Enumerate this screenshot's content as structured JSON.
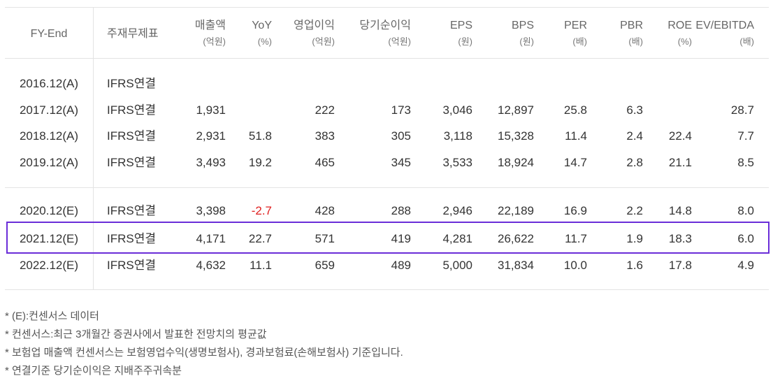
{
  "table": {
    "headers": {
      "fy_end": "FY-End",
      "statement": "주재무제표",
      "sales": "매출액",
      "sales_unit": "(억원)",
      "yoy": "YoY",
      "yoy_unit": "(%)",
      "op": "영업이익",
      "op_unit": "(억원)",
      "net": "당기순이익",
      "net_unit": "(억원)",
      "eps": "EPS",
      "eps_unit": "(원)",
      "bps": "BPS",
      "bps_unit": "(원)",
      "per": "PER",
      "per_unit": "(배)",
      "pbr": "PBR",
      "pbr_unit": "(배)",
      "roe": "ROE",
      "roe_unit": "(%)",
      "ev": "EV/EBITDA",
      "ev_unit": "(배)"
    },
    "rows": [
      {
        "fy": "2016.12(A)",
        "stmt": "IFRS연결",
        "sales": "",
        "yoy": "",
        "op": "",
        "net": "",
        "eps": "",
        "bps": "",
        "per": "",
        "pbr": "",
        "roe": "",
        "ev": ""
      },
      {
        "fy": "2017.12(A)",
        "stmt": "IFRS연결",
        "sales": "1,931",
        "yoy": "",
        "op": "222",
        "net": "173",
        "eps": "3,046",
        "bps": "12,897",
        "per": "25.8",
        "pbr": "6.3",
        "roe": "",
        "ev": "28.7"
      },
      {
        "fy": "2018.12(A)",
        "stmt": "IFRS연결",
        "sales": "2,931",
        "yoy": "51.8",
        "op": "383",
        "net": "305",
        "eps": "3,118",
        "bps": "15,328",
        "per": "11.4",
        "pbr": "2.4",
        "roe": "22.4",
        "ev": "7.7"
      },
      {
        "fy": "2019.12(A)",
        "stmt": "IFRS연결",
        "sales": "3,493",
        "yoy": "19.2",
        "op": "465",
        "net": "345",
        "eps": "3,533",
        "bps": "18,924",
        "per": "14.7",
        "pbr": "2.8",
        "roe": "21.1",
        "ev": "8.5"
      },
      {
        "fy": "2020.12(E)",
        "stmt": "IFRS연결",
        "sales": "3,398",
        "yoy": "-2.7",
        "op": "428",
        "net": "288",
        "eps": "2,946",
        "bps": "22,189",
        "per": "16.9",
        "pbr": "2.2",
        "roe": "14.8",
        "ev": "8.0"
      },
      {
        "fy": "2021.12(E)",
        "stmt": "IFRS연결",
        "sales": "4,171",
        "yoy": "22.7",
        "op": "571",
        "net": "419",
        "eps": "4,281",
        "bps": "26,622",
        "per": "11.7",
        "pbr": "1.9",
        "roe": "18.3",
        "ev": "6.0"
      },
      {
        "fy": "2022.12(E)",
        "stmt": "IFRS연결",
        "sales": "4,632",
        "yoy": "11.1",
        "op": "659",
        "net": "489",
        "eps": "5,000",
        "bps": "31,834",
        "per": "10.0",
        "pbr": "1.6",
        "roe": "17.8",
        "ev": "4.9"
      }
    ]
  },
  "notes": [
    "* (E):컨센서스 데이터",
    "* 컨센서스:최근 3개월간 증권사에서 발표한 전망치의 평균값",
    "* 보험업 매출액 컨센서스는 보험영업수익(생명보험사), 경과보험료(손해보험사) 기준입니다.",
    "* 연결기준 당기순이익은 지배주주귀속분"
  ],
  "colors": {
    "highlight": "#6a2dd8",
    "negative": "#e02020"
  }
}
